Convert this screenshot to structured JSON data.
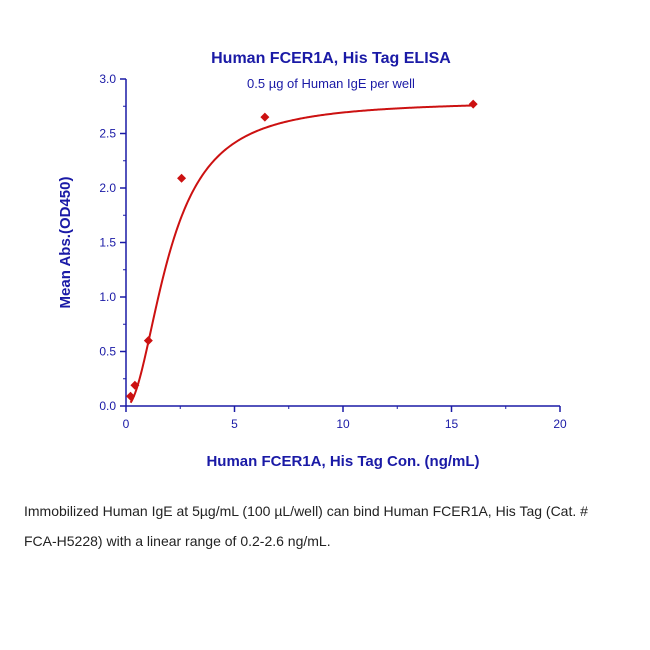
{
  "colors": {
    "axis": "#1a1aa6",
    "text": "#1a1aa6",
    "series": "#cc1111",
    "caption": "#222222"
  },
  "chart_data": {
    "type": "scatter",
    "title": "Human FCER1A, His Tag ELISA",
    "subtitle": "0.5 µg of Human IgE per well",
    "xlabel": "Human FCER1A, His Tag Con. (ng/mL)",
    "ylabel": "Mean Abs.(OD450)",
    "xlim": [
      0,
      20
    ],
    "ylim": [
      0,
      3.0
    ],
    "xticks": [
      0,
      5,
      10,
      15,
      20
    ],
    "yticks": [
      0.0,
      0.5,
      1.0,
      1.5,
      2.0,
      2.5,
      3.0
    ],
    "ytick_labels": [
      "0.0",
      "0.5",
      "1.0",
      "1.5",
      "2.0",
      "2.5",
      "3.0"
    ],
    "grid": false,
    "points": [
      {
        "x": 0.21,
        "y": 0.09
      },
      {
        "x": 0.41,
        "y": 0.19
      },
      {
        "x": 1.03,
        "y": 0.6
      },
      {
        "x": 2.56,
        "y": 2.09
      },
      {
        "x": 6.4,
        "y": 2.65
      },
      {
        "x": 16.0,
        "y": 2.77
      }
    ],
    "fit_curve": {
      "type": "4PL",
      "bottom": 0.0,
      "top": 2.8,
      "ec50": 2.0,
      "hill": 2.0
    }
  },
  "caption": "Immobilized Human IgE at 5µg/mL (100 µL/well) can bind Human FCER1A, His Tag (Cat. # FCA-H5228) with a linear range of 0.2-2.6 ng/mL."
}
